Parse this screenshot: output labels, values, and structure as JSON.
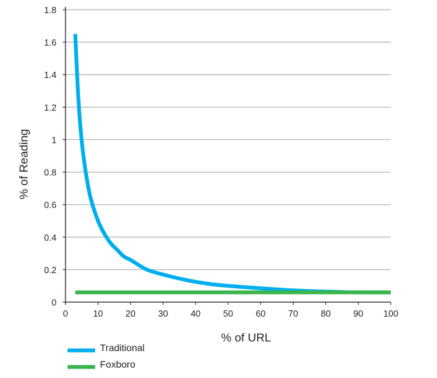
{
  "chart_data": {
    "type": "line",
    "xlabel": "% of URL",
    "ylabel": "% of Reading",
    "xlim": [
      0,
      100
    ],
    "ylim": [
      0,
      1.8
    ],
    "x_ticks": [
      "0",
      "10",
      "20",
      "30",
      "40",
      "50",
      "60",
      "70",
      "80",
      "90",
      "100"
    ],
    "y_ticks": [
      "0",
      "0.2",
      "0.4",
      "0.6",
      "0.8",
      "1",
      "1.2",
      "1.4",
      "1.6",
      "1.8"
    ],
    "grid": "horizontal",
    "legend": "bottom-left",
    "series": [
      {
        "name": "Traditional",
        "color": "#00aeef",
        "x": [
          3,
          4,
          5,
          6,
          7,
          8,
          10,
          12,
          14,
          16,
          18,
          20,
          25,
          30,
          35,
          40,
          45,
          50,
          55,
          60,
          65,
          70,
          75,
          80,
          85,
          90,
          95,
          100
        ],
        "y": [
          1.65,
          1.24,
          0.99,
          0.83,
          0.71,
          0.62,
          0.5,
          0.42,
          0.36,
          0.32,
          0.28,
          0.26,
          0.2,
          0.17,
          0.145,
          0.125,
          0.11,
          0.1,
          0.092,
          0.085,
          0.078,
          0.072,
          0.068,
          0.065,
          0.062,
          0.06,
          0.06,
          0.06
        ]
      },
      {
        "name": "Foxboro",
        "color": "#3ab54a",
        "x": [
          3,
          100
        ],
        "y": [
          0.06,
          0.06
        ]
      }
    ]
  }
}
